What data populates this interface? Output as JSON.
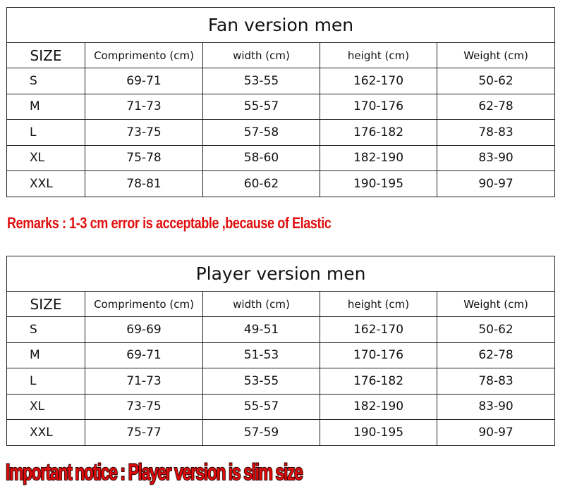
{
  "tables": [
    {
      "title": "Fan version men",
      "headers": [
        "SIZE",
        "Comprimento (cm)",
        "width (cm)",
        "height (cm)",
        "Weight (cm)"
      ],
      "rows": [
        [
          "S",
          "69-71",
          "53-55",
          "162-170",
          "50-62"
        ],
        [
          "M",
          "71-73",
          "55-57",
          "170-176",
          "62-78"
        ],
        [
          "L",
          "73-75",
          "57-58",
          "176-182",
          "78-83"
        ],
        [
          "XL",
          "75-78",
          "58-60",
          "182-190",
          "83-90"
        ],
        [
          "XXL",
          "78-81",
          "60-62",
          "190-195",
          "90-97"
        ]
      ]
    },
    {
      "title": "Player version men",
      "headers": [
        "SIZE",
        "Comprimento (cm)",
        "width (cm)",
        "height (cm)",
        "Weight (cm)"
      ],
      "rows": [
        [
          "S",
          "69-69",
          "49-51",
          "162-170",
          "50-62"
        ],
        [
          "M",
          "69-71",
          "51-53",
          "170-176",
          "62-78"
        ],
        [
          "L",
          "71-73",
          "53-55",
          "176-182",
          "78-83"
        ],
        [
          "XL",
          "73-75",
          "55-57",
          "182-190",
          "83-90"
        ],
        [
          "XXL",
          "75-77",
          "57-59",
          "190-195",
          "90-97"
        ]
      ]
    }
  ],
  "remarks": "Remarks : 1-3 cm error is acceptable ,because of Elastic",
  "notice": "Important notice :  Player version is slim size",
  "colors": {
    "remark": "#e01010",
    "border": "#222222"
  }
}
